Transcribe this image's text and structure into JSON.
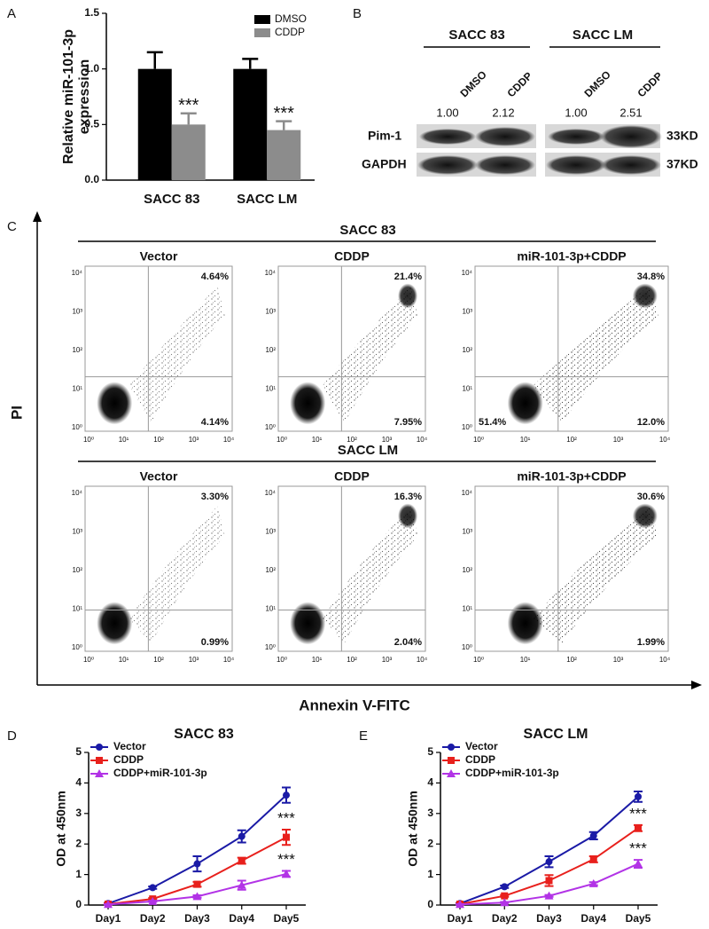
{
  "panel_labels": [
    "A",
    "B",
    "C",
    "D",
    "E"
  ],
  "chart_data": [
    {
      "type": "bar",
      "y_label": [
        "Relative miR-101-3p",
        "expression"
      ],
      "categories": [
        "SACC 83",
        "SACC LM"
      ],
      "series": [
        {
          "name": "DMSO",
          "color": "#000000",
          "values": [
            1.0,
            1.0
          ],
          "errors": [
            0.15,
            0.09
          ]
        },
        {
          "name": "CDDP",
          "color": "#8c8c8c",
          "values": [
            0.5,
            0.45
          ],
          "errors": [
            0.1,
            0.08
          ],
          "annotations": [
            "***",
            "***"
          ]
        }
      ],
      "ylim": [
        0,
        1.5
      ],
      "yticks": [
        {
          "value": 0,
          "label": "0.0"
        },
        {
          "value": 0.5,
          "label": "0.5"
        },
        {
          "value": 1,
          "label": "1.0"
        },
        {
          "value": 1.5,
          "label": "1.5"
        }
      ]
    },
    {
      "type": "line",
      "title": "SACC 83",
      "y_label": "OD at 450nm",
      "categories": [
        "Day1",
        "Day2",
        "Day3",
        "Day4",
        "Day5"
      ],
      "series": [
        {
          "name": "Vector",
          "color": "#1a1aa6",
          "marker": "circle",
          "values": [
            0.05,
            0.57,
            1.35,
            2.25,
            3.6
          ],
          "errors": [
            0.02,
            0.04,
            0.25,
            0.2,
            0.25
          ]
        },
        {
          "name": "CDDP",
          "color": "#e8201c",
          "marker": "square",
          "values": [
            0.03,
            0.2,
            0.68,
            1.45,
            2.22
          ],
          "errors": [
            0.02,
            0.03,
            0.08,
            0.1,
            0.25
          ],
          "annotations": [
            null,
            null,
            null,
            null,
            "***"
          ]
        },
        {
          "name": "CDDP+miR-101-3p",
          "color": "#b233e6",
          "marker": "triangle",
          "values": [
            0.02,
            0.12,
            0.28,
            0.65,
            1.02
          ],
          "errors": [
            0.01,
            0.02,
            0.04,
            0.15,
            0.1
          ],
          "annotations": [
            null,
            null,
            null,
            null,
            "***"
          ]
        }
      ],
      "ylim": [
        0,
        5
      ],
      "yticks": [
        0,
        1,
        2,
        3,
        4,
        5
      ]
    },
    {
      "type": "line",
      "title": "SACC LM",
      "y_label": "OD at 450nm",
      "categories": [
        "Day1",
        "Day2",
        "Day3",
        "Day4",
        "Day5"
      ],
      "series": [
        {
          "name": "Vector",
          "color": "#1a1aa6",
          "marker": "circle",
          "values": [
            0.05,
            0.6,
            1.42,
            2.27,
            3.55
          ],
          "errors": [
            0.02,
            0.04,
            0.18,
            0.12,
            0.17
          ]
        },
        {
          "name": "CDDP",
          "color": "#e8201c",
          "marker": "square",
          "values": [
            0.03,
            0.3,
            0.8,
            1.5,
            2.52
          ],
          "errors": [
            0.02,
            0.03,
            0.18,
            0.1,
            0.1
          ],
          "annotations": [
            null,
            null,
            null,
            null,
            "***"
          ]
        },
        {
          "name": "CDDP+miR-101-3p",
          "color": "#b233e6",
          "marker": "triangle",
          "values": [
            0.02,
            0.08,
            0.3,
            0.7,
            1.35
          ],
          "errors": [
            0.01,
            0.02,
            0.03,
            0.05,
            0.13
          ],
          "annotations": [
            null,
            null,
            null,
            null,
            "***"
          ]
        }
      ],
      "ylim": [
        0,
        5
      ],
      "yticks": [
        0,
        1,
        2,
        3,
        4,
        5
      ]
    }
  ],
  "blot": {
    "groups": [
      {
        "name": "SACC 83",
        "lanes": [
          "DMSO",
          "CDDP"
        ],
        "ratios": [
          "1.00",
          "2.12"
        ]
      },
      {
        "name": "SACC LM",
        "lanes": [
          "DMSO",
          "CDDP"
        ],
        "ratios": [
          "1.00",
          "2.51"
        ]
      }
    ],
    "rows": [
      "Pim-1",
      "GAPDH"
    ],
    "sizes": [
      "33KD",
      "37KD"
    ]
  },
  "flow": {
    "y_label": "PI",
    "x_label": "Annexin V-FITC",
    "ticks": [
      "10⁰",
      "10¹",
      "10²",
      "10³",
      "10⁴"
    ],
    "groups": [
      {
        "name": "SACC 83",
        "plots": [
          {
            "title": "Vector",
            "upper_right": "4.64%",
            "lower_right": "4.14%"
          },
          {
            "title": "CDDP",
            "upper_right": "21.4%",
            "lower_right": "7.95%"
          },
          {
            "title": "miR-101-3p+CDDP",
            "upper_right": "34.8%",
            "lower_right": "12.0%",
            "lower_left": "51.4%"
          }
        ]
      },
      {
        "name": "SACC LM",
        "plots": [
          {
            "title": "Vector",
            "upper_right": "3.30%",
            "lower_right": "0.99%"
          },
          {
            "title": "CDDP",
            "upper_right": "16.3%",
            "lower_right": "2.04%"
          },
          {
            "title": "miR-101-3p+CDDP",
            "upper_right": "30.6%",
            "lower_right": "1.99%"
          }
        ]
      }
    ]
  }
}
